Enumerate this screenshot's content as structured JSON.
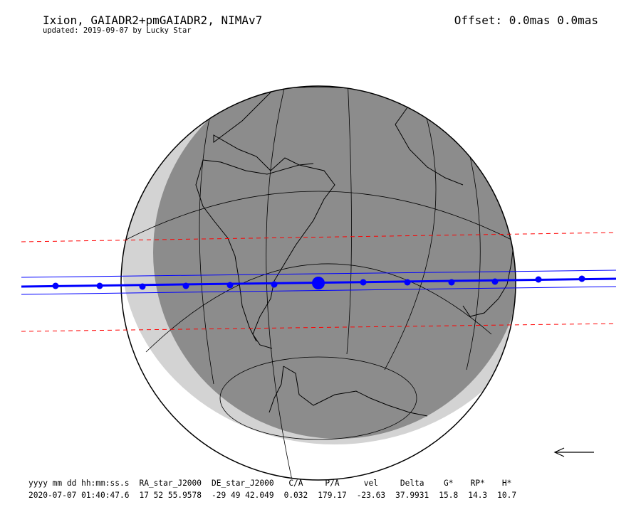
{
  "header": {
    "title": "Ixion, GAIADR2+pmGAIADR2, NIMAv7",
    "subtitle": "updated: 2019-09-07 by Lucky Star",
    "offset": "Offset: 0.0mas 0.0mas"
  },
  "table": {
    "columns": [
      "yyyy mm dd hh:mm:ss.s",
      "RA_star_J2000",
      "DE_star_J2000",
      "C/A",
      "P/A",
      "vel",
      "Delta",
      "G*",
      "RP*",
      "H*"
    ],
    "values": [
      "2020-07-07 01:40:47.6",
      "17 52 55.9578",
      "-29 49 42.049",
      "0.032",
      "179.17",
      "-23.63",
      "37.9931",
      "15.8",
      "14.3",
      "10.7"
    ]
  },
  "map": {
    "night_color": "#8c8c8c",
    "twilight_color": "#d3d3d3",
    "path_color": "#0000ff",
    "limit_color": "#ff0000",
    "direction_arrow": "arrow-left-icon"
  }
}
